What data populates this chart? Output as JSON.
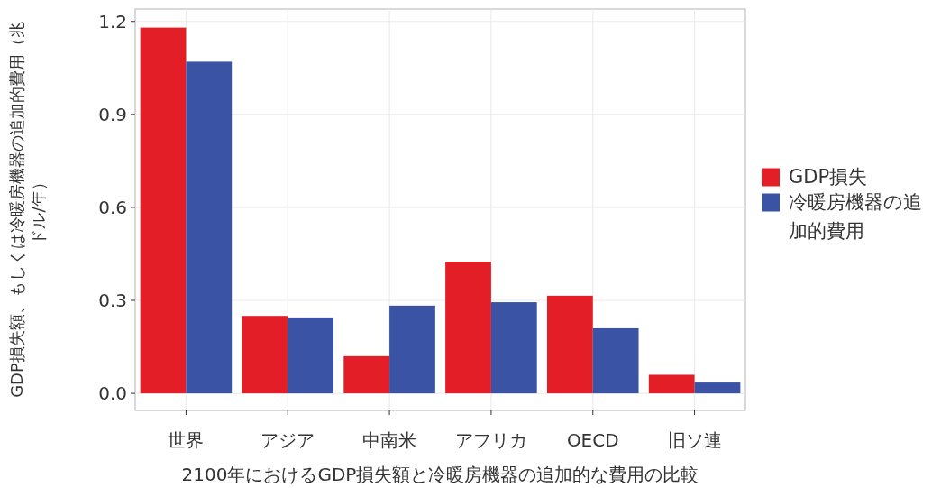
{
  "chart_data": {
    "type": "bar",
    "xlabel": "2100年におけるGDP損失額と冷暖房機器の追加的な費用の比較",
    "ylabel": "GDP損失額、もしくは冷暖房機器の追加的費用（兆ドル/年）",
    "categories": [
      "世界",
      "アジア",
      "中南米",
      "アフリカ",
      "OECD",
      "旧ソ連"
    ],
    "series": [
      {
        "name": "GDP損失",
        "color": "#e41e26",
        "values": [
          1.18,
          0.25,
          0.12,
          0.425,
          0.315,
          0.06
        ]
      },
      {
        "name": "冷暖房機器の追加的費用",
        "color": "#3a53a4",
        "values": [
          1.07,
          0.245,
          0.283,
          0.294,
          0.21,
          0.035
        ]
      }
    ],
    "ylim": [
      -0.055,
      1.24
    ],
    "yticks": [
      {
        "value": 0,
        "label": "0.0"
      },
      {
        "value": 0.3,
        "label": "0.3"
      },
      {
        "value": 0.6,
        "label": "0.6"
      },
      {
        "value": 0.9,
        "label": "0.9"
      },
      {
        "value": 1.2,
        "label": "1.2"
      }
    ],
    "grid": true,
    "legend": "right"
  }
}
